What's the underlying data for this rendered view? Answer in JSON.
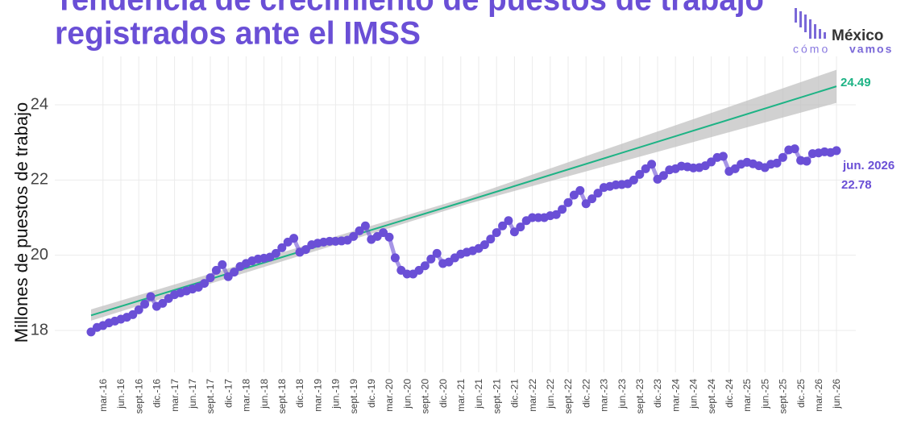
{
  "chart_data": {
    "type": "line",
    "title": [
      "Tendencia de crecimiento de puestos de trabajo",
      "registrados ante el IMSS"
    ],
    "logo": {
      "name": "México",
      "tagline_light": "cómo",
      "tagline_bold": "vamos"
    },
    "y_label": "Millones de puestos de trabajo",
    "categories": [
      null,
      null,
      "mar.-16",
      null,
      null,
      "jun.-16",
      null,
      null,
      "sept.-16",
      null,
      null,
      "dic.-16",
      null,
      null,
      "mar.-17",
      null,
      null,
      "jun.-17",
      null,
      null,
      "sept.-17",
      null,
      null,
      "dic.-17",
      null,
      null,
      "mar.-18",
      null,
      null,
      "jun.-18",
      null,
      null,
      "sept.-18",
      null,
      null,
      "dic.-18",
      null,
      null,
      "mar.-19",
      null,
      null,
      "jun.-19",
      null,
      null,
      "sept.-19",
      null,
      null,
      "dic.-19",
      null,
      null,
      "mar.-20",
      null,
      null,
      "jun.-20",
      null,
      null,
      "sept.-20",
      null,
      null,
      "dic.-20",
      null,
      null,
      "mar.-21",
      null,
      null,
      "jun.-21",
      null,
      null,
      "sept.-21",
      null,
      null,
      "dic.-21",
      null,
      null,
      "mar.-22",
      null,
      null,
      "jun.-22",
      null,
      null,
      "sept.-22",
      null,
      null,
      "dic.-22",
      null,
      null,
      "mar.-23",
      null,
      null,
      "jun.-23",
      null,
      null,
      "sept.-23",
      null,
      null,
      "dic.-23",
      null,
      null,
      "mar.-24",
      null,
      null,
      "jun.-24",
      null,
      null,
      "sept.-24",
      null,
      null,
      "dic.-24",
      null,
      null,
      "mar.-25",
      null,
      null,
      "jun.-25",
      null,
      null,
      "sept.-25",
      null,
      null,
      "dic.-25",
      null,
      null,
      "mar.-26",
      null,
      null,
      "jun.-26"
    ],
    "series": [
      {
        "color": "#6a4fd6",
        "values": [
          17.96,
          18.08,
          18.13,
          18.2,
          18.25,
          18.3,
          18.35,
          18.42,
          18.55,
          18.7,
          18.9,
          18.64,
          18.72,
          18.85,
          18.95,
          19.0,
          19.05,
          19.1,
          19.15,
          19.25,
          19.4,
          19.6,
          19.75,
          19.43,
          19.55,
          19.7,
          19.78,
          19.85,
          19.9,
          19.92,
          19.95,
          20.05,
          20.2,
          20.35,
          20.45,
          20.08,
          20.15,
          20.28,
          20.32,
          20.35,
          20.37,
          20.37,
          20.38,
          20.4,
          20.5,
          20.65,
          20.78,
          20.42,
          20.5,
          20.6,
          20.48,
          19.93,
          19.6,
          19.5,
          19.5,
          19.6,
          19.72,
          19.9,
          20.05,
          19.78,
          19.82,
          19.93,
          20.03,
          20.08,
          20.12,
          20.18,
          20.28,
          20.43,
          20.6,
          20.78,
          20.92,
          20.62,
          20.75,
          20.92,
          21.0,
          21.0,
          21.0,
          21.05,
          21.08,
          21.22,
          21.4,
          21.6,
          21.72,
          21.37,
          21.5,
          21.65,
          21.8,
          21.83,
          21.87,
          21.88,
          21.9,
          22.0,
          22.15,
          22.3,
          22.42,
          22.02,
          22.12,
          22.27,
          22.3,
          22.37,
          22.35,
          22.32,
          22.33,
          22.38,
          22.48,
          22.6,
          22.63,
          22.23,
          22.3,
          22.42,
          22.47,
          22.43,
          22.38,
          22.33,
          22.42,
          22.45,
          22.6,
          22.8,
          22.83,
          22.52,
          22.5,
          22.7,
          22.72,
          22.75,
          22.73,
          22.78
        ]
      }
    ],
    "trend": {
      "color": "#1db385",
      "band_color": "#bdbdbd",
      "category_index": [
        0,
        63,
        125
      ],
      "values": [
        18.4,
        21.445,
        24.49
      ],
      "lower": [
        18.26,
        21.36,
        24.05
      ],
      "upper": [
        18.56,
        21.54,
        24.93
      ]
    },
    "annotations": [
      "jun. 2026"
    ],
    "ylim": [
      16.8,
      25.2
    ],
    "yticks": [
      18,
      20,
      22,
      24
    ],
    "grid": true
  }
}
